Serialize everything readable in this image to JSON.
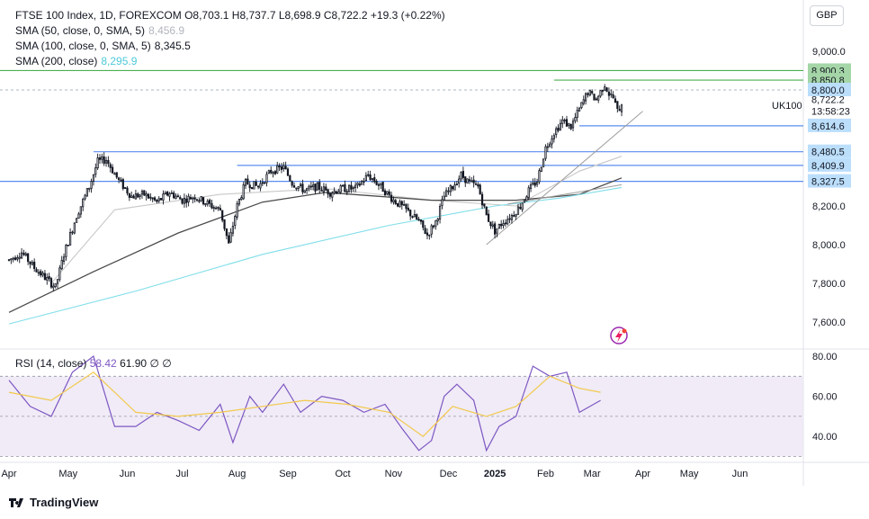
{
  "legend": {
    "title": "FTSE 100 Index, 1D, FOREXCOM",
    "ohlc": "O8,703.1  H8,737.7  L8,698.9  C8,722.2  +19.3 (+0.22%)",
    "sma50_label": "SMA (50, close, 0, SMA, 5)",
    "sma50_value": "8,456.9",
    "sma100_label": "SMA (100, close, 0, SMA, 5)",
    "sma100_value": "8,345.5",
    "sma200_label": "SMA (200, close)",
    "sma200_value": "8,295.9"
  },
  "rsi_legend": {
    "label": "RSI (14, close)",
    "rsi": "58.42",
    "ma": "61.90",
    "z1": "∅",
    "z2": "∅"
  },
  "currency": "GBP",
  "symbol": "UK100",
  "countdown": "13:58:23",
  "brand": "TradingView",
  "colors": {
    "up": "#131722",
    "down": "#131722",
    "sma50": "#c8c8c8",
    "sma100": "#4a4a4a",
    "sma200": "#80deea",
    "level_blue": "#2962ff",
    "level_green": "#4caf50",
    "rsi": "#7e57c2",
    "rsi_ma": "#f2c94c"
  },
  "chart_data": [
    {
      "type": "candlestick",
      "title": "FTSE 100 Index, 1D, FOREXCOM",
      "x_ticks": [
        "Apr",
        "May",
        "Jun",
        "Jul",
        "Aug",
        "Sep",
        "Oct",
        "Nov",
        "Dec",
        "2025",
        "Feb",
        "Mar",
        "Apr",
        "May",
        "Jun"
      ],
      "y_ticks": [
        "9,000.0",
        "8,200.0",
        "8,000.0",
        "7,800.0",
        "7,600.0"
      ],
      "ylim": [
        7550,
        9050
      ],
      "last_close": 8722.2,
      "price_path": [
        [
          0,
          7920
        ],
        [
          6,
          7960
        ],
        [
          12,
          7880
        ],
        [
          18,
          7820
        ],
        [
          22,
          7780
        ],
        [
          26,
          7950
        ],
        [
          32,
          8150
        ],
        [
          38,
          8300
        ],
        [
          42,
          8430
        ],
        [
          46,
          8440
        ],
        [
          52,
          8330
        ],
        [
          58,
          8250
        ],
        [
          64,
          8260
        ],
        [
          70,
          8220
        ],
        [
          76,
          8270
        ],
        [
          82,
          8230
        ],
        [
          88,
          8250
        ],
        [
          96,
          8200
        ],
        [
          100,
          8180
        ],
        [
          104,
          8000
        ],
        [
          108,
          8200
        ],
        [
          112,
          8320
        ],
        [
          118,
          8300
        ],
        [
          124,
          8380
        ],
        [
          130,
          8400
        ],
        [
          134,
          8320
        ],
        [
          140,
          8280
        ],
        [
          146,
          8300
        ],
        [
          152,
          8270
        ],
        [
          158,
          8290
        ],
        [
          164,
          8290
        ],
        [
          170,
          8360
        ],
        [
          176,
          8300
        ],
        [
          182,
          8230
        ],
        [
          188,
          8180
        ],
        [
          194,
          8120
        ],
        [
          198,
          8050
        ],
        [
          202,
          8120
        ],
        [
          206,
          8250
        ],
        [
          210,
          8300
        ],
        [
          214,
          8360
        ],
        [
          218,
          8320
        ],
        [
          222,
          8300
        ],
        [
          226,
          8150
        ],
        [
          230,
          8070
        ],
        [
          234,
          8120
        ],
        [
          238,
          8150
        ],
        [
          242,
          8200
        ],
        [
          246,
          8280
        ],
        [
          250,
          8330
        ],
        [
          254,
          8500
        ],
        [
          258,
          8580
        ],
        [
          262,
          8640
        ],
        [
          266,
          8610
        ],
        [
          270,
          8700
        ],
        [
          274,
          8790
        ],
        [
          278,
          8750
        ],
        [
          282,
          8830
        ],
        [
          284,
          8780
        ],
        [
          286,
          8760
        ],
        [
          288,
          8690
        ],
        [
          290,
          8722
        ]
      ],
      "series": [
        {
          "name": "SMA (50, close, 0, SMA, 5)",
          "points": [
            [
              20,
              7800
            ],
            [
              50,
              8180
            ],
            [
              100,
              8260
            ],
            [
              150,
              8290
            ],
            [
              200,
              8230
            ],
            [
              240,
              8200
            ],
            [
              270,
              8380
            ],
            [
              290,
              8457
            ]
          ]
        },
        {
          "name": "SMA (100, close, 0, SMA, 5)",
          "points": [
            [
              0,
              7650
            ],
            [
              40,
              7860
            ],
            [
              80,
              8060
            ],
            [
              120,
              8220
            ],
            [
              150,
              8270
            ],
            [
              200,
              8230
            ],
            [
              240,
              8230
            ],
            [
              270,
              8260
            ],
            [
              290,
              8345
            ]
          ]
        },
        {
          "name": "SMA (200, close)",
          "points": [
            [
              0,
              7590
            ],
            [
              60,
              7760
            ],
            [
              120,
              7950
            ],
            [
              180,
              8100
            ],
            [
              230,
              8200
            ],
            [
              260,
              8240
            ],
            [
              290,
              8296
            ]
          ]
        }
      ],
      "levels": [
        {
          "label": "8,900.3",
          "value": 8900.3,
          "color": "green"
        },
        {
          "label": "8,850.8",
          "value": 8850.8,
          "color": "green"
        },
        {
          "label": "8,800.0",
          "value": 8800.0,
          "color": "blue-dashed"
        },
        {
          "label": "8,614.6",
          "value": 8614.6,
          "color": "blue"
        },
        {
          "label": "8,480.5",
          "value": 8480.5,
          "color": "blue"
        },
        {
          "label": "8,409.9",
          "value": 8409.9,
          "color": "blue"
        },
        {
          "label": "8,327.5",
          "value": 8327.5,
          "color": "blue"
        }
      ],
      "last_price_label": "8,722.2",
      "trendlines": [
        {
          "from": [
            226,
            8000
          ],
          "to": [
            300,
            8690
          ]
        },
        {
          "from": [
            236,
            8210
          ],
          "to": [
            290,
            8310
          ]
        }
      ]
    },
    {
      "type": "line",
      "title": "RSI (14, close)",
      "y_ticks": [
        "80.00",
        "60.00",
        "40.00"
      ],
      "ylim": [
        25,
        85
      ],
      "bands": [
        30,
        50,
        70
      ],
      "series": [
        {
          "name": "RSI",
          "points": [
            [
              0,
              68
            ],
            [
              10,
              55
            ],
            [
              20,
              50
            ],
            [
              30,
              72
            ],
            [
              40,
              80
            ],
            [
              50,
              45
            ],
            [
              60,
              45
            ],
            [
              70,
              52
            ],
            [
              80,
              48
            ],
            [
              90,
              43
            ],
            [
              100,
              56
            ],
            [
              106,
              37
            ],
            [
              114,
              60
            ],
            [
              120,
              52
            ],
            [
              130,
              66
            ],
            [
              138,
              52
            ],
            [
              148,
              60
            ],
            [
              158,
              58
            ],
            [
              168,
              52
            ],
            [
              178,
              56
            ],
            [
              186,
              44
            ],
            [
              194,
              33
            ],
            [
              200,
              38
            ],
            [
              206,
              60
            ],
            [
              212,
              66
            ],
            [
              220,
              58
            ],
            [
              226,
              33
            ],
            [
              232,
              45
            ],
            [
              240,
              50
            ],
            [
              248,
              75
            ],
            [
              256,
              70
            ],
            [
              264,
              72
            ],
            [
              270,
              52
            ],
            [
              280,
              58
            ]
          ]
        },
        {
          "name": "RSI MA",
          "points": [
            [
              0,
              62
            ],
            [
              20,
              58
            ],
            [
              40,
              72
            ],
            [
              60,
              52
            ],
            [
              80,
              50
            ],
            [
              100,
              52
            ],
            [
              120,
              55
            ],
            [
              140,
              58
            ],
            [
              160,
              56
            ],
            [
              180,
              52
            ],
            [
              196,
              40
            ],
            [
              210,
              55
            ],
            [
              226,
              50
            ],
            [
              240,
              55
            ],
            [
              256,
              70
            ],
            [
              270,
              64
            ],
            [
              280,
              62
            ]
          ]
        }
      ]
    }
  ]
}
